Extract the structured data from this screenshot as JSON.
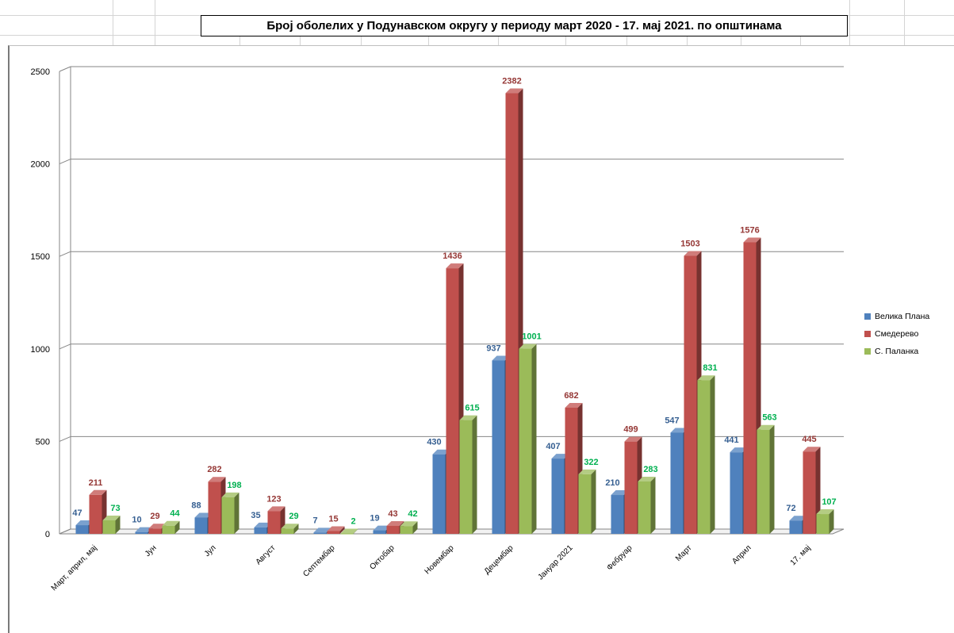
{
  "chart_data": {
    "type": "bar",
    "title": "Број оболелих у Подунавском округу у периоду март 2020 - 17. мај 2021. по општинама",
    "categories": [
      "Март, април, мај",
      "Јун",
      "Јул",
      "Август",
      "Септембар",
      "Октобар",
      "Новембар",
      "Децембар",
      "Јануар 2021",
      "Фебруар",
      "Март",
      "Април",
      "17. мај"
    ],
    "series": [
      {
        "name": "Велика Плана",
        "color": "#4f81bd",
        "label_color": "#376092",
        "values": [
          47,
          10,
          88,
          35,
          7,
          19,
          430,
          937,
          407,
          210,
          547,
          441,
          72
        ]
      },
      {
        "name": "Смедерево",
        "color": "#c0504d",
        "label_color": "#953735",
        "values": [
          211,
          29,
          282,
          123,
          15,
          43,
          1436,
          2382,
          682,
          499,
          1503,
          1576,
          445
        ]
      },
      {
        "name": "С. Паланка",
        "color": "#9bbb59",
        "label_color": "#00b050",
        "values": [
          73,
          44,
          198,
          29,
          2,
          42,
          615,
          1001,
          322,
          283,
          831,
          563,
          107
        ]
      }
    ],
    "yticks": [
      "0",
      "500",
      "1000",
      "1500",
      "2000",
      "2500"
    ],
    "ylim": [
      0,
      2500
    ],
    "grid": true,
    "legend": "right",
    "xlabel": "",
    "ylabel": ""
  }
}
